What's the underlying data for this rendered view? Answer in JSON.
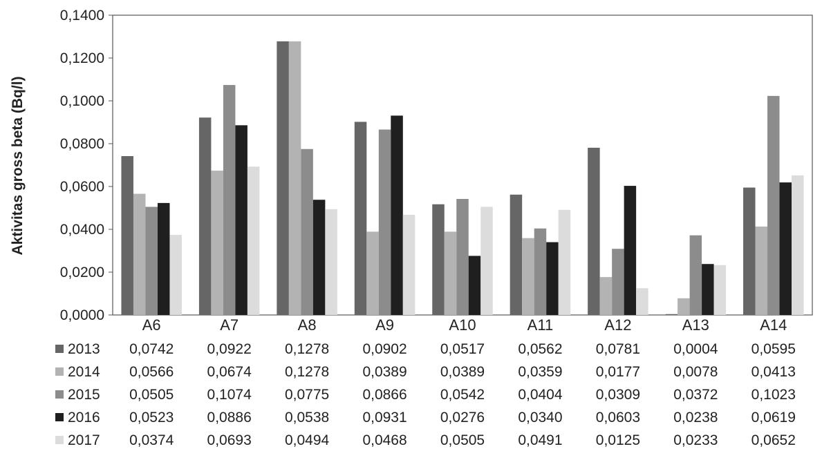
{
  "chart_data": {
    "type": "bar",
    "title": "",
    "xlabel": "",
    "ylabel": "Aktivitas gross beta (Bq/l)",
    "ylim": [
      0,
      0.14
    ],
    "yticks": [
      "0,0000",
      "0,0200",
      "0,0400",
      "0,0600",
      "0,0800",
      "0,1000",
      "0,1200",
      "0,1400"
    ],
    "grid": false,
    "legend": "data-table-below",
    "categories": [
      "A6",
      "A7",
      "A8",
      "A9",
      "A10",
      "A11",
      "A12",
      "A13",
      "A14"
    ],
    "series": [
      {
        "name": "2013",
        "color": "#666666",
        "values": [
          0.0742,
          0.0922,
          0.1278,
          0.0902,
          0.0517,
          0.0562,
          0.0781,
          0.0004,
          0.0595
        ],
        "labels": [
          "0,0742",
          "0,0922",
          "0,1278",
          "0,0902",
          "0,0517",
          "0,0562",
          "0,0781",
          "0,0004",
          "0,0595"
        ]
      },
      {
        "name": "2014",
        "color": "#b3b3b3",
        "values": [
          0.0566,
          0.0674,
          0.1278,
          0.0389,
          0.0389,
          0.0359,
          0.0177,
          0.0078,
          0.0413
        ],
        "labels": [
          "0,0566",
          "0,0674",
          "0,1278",
          "0,0389",
          "0,0389",
          "0,0359",
          "0,0177",
          "0,0078",
          "0,0413"
        ]
      },
      {
        "name": "2015",
        "color": "#8c8c8c",
        "values": [
          0.0505,
          0.1074,
          0.0775,
          0.0866,
          0.0542,
          0.0404,
          0.0309,
          0.0372,
          0.1023
        ],
        "labels": [
          "0,0505",
          "0,1074",
          "0,0775",
          "0,0866",
          "0,0542",
          "0,0404",
          "0,0309",
          "0,0372",
          "0,1023"
        ]
      },
      {
        "name": "2016",
        "color": "#1f1f1f",
        "values": [
          0.0523,
          0.0886,
          0.0538,
          0.0931,
          0.0276,
          0.034,
          0.0603,
          0.0238,
          0.0619
        ],
        "labels": [
          "0,0523",
          "0,0886",
          "0,0538",
          "0,0931",
          "0,0276",
          "0,0340",
          "0,0603",
          "0,0238",
          "0,0619"
        ]
      },
      {
        "name": "2017",
        "color": "#dcdcdc",
        "values": [
          0.0374,
          0.0693,
          0.0494,
          0.0468,
          0.0505,
          0.0491,
          0.0125,
          0.0233,
          0.0652
        ],
        "labels": [
          "0,0374",
          "0,0693",
          "0,0494",
          "0,0468",
          "0,0505",
          "0,0491",
          "0,0125",
          "0,0233",
          "0,0652"
        ]
      }
    ]
  }
}
